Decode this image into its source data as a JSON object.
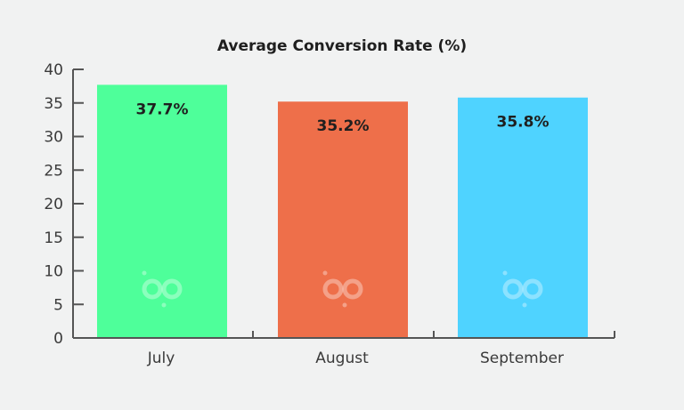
{
  "chart_data": {
    "type": "bar",
    "title": "Average Conversion Rate (%)",
    "categories": [
      "July",
      "August",
      "September"
    ],
    "values": [
      37.7,
      35.2,
      35.8
    ],
    "data_labels": [
      "37.7%",
      "35.2%",
      "35.8%"
    ],
    "colors": [
      "#4eff9a",
      "#ee6f4a",
      "#4fd3ff"
    ],
    "ylim": [
      0,
      40
    ],
    "yticks": [
      "0",
      "5",
      "10",
      "15",
      "20",
      "25",
      "30",
      "35",
      "40"
    ],
    "ytick_values": [
      0,
      5,
      10,
      15,
      20,
      25,
      30,
      35,
      40
    ],
    "grid": false,
    "watermark_icon": "bp-logo-icon",
    "axis_color": "#555555"
  }
}
